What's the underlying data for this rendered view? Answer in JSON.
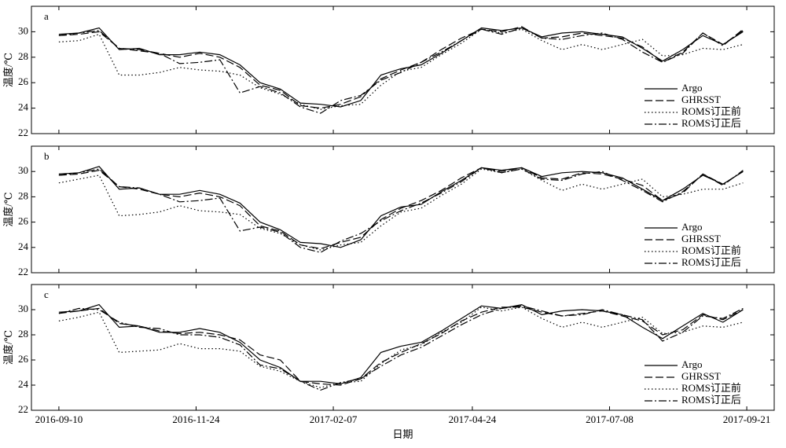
{
  "chart_data": [
    {
      "type": "line",
      "panel_label": "a",
      "ylabel": "温度/℃",
      "x": [
        "2016-09-10",
        "2016-09-21",
        "2016-10-02",
        "2016-10-13",
        "2016-10-24",
        "2016-11-04",
        "2016-11-15",
        "2016-11-26",
        "2016-12-07",
        "2016-12-18",
        "2016-12-29",
        "2017-01-09",
        "2017-01-20",
        "2017-01-31",
        "2017-02-11",
        "2017-02-22",
        "2017-03-05",
        "2017-03-16",
        "2017-03-27",
        "2017-04-07",
        "2017-04-18",
        "2017-04-29",
        "2017-05-10",
        "2017-05-21",
        "2017-06-01",
        "2017-06-12",
        "2017-06-23",
        "2017-07-04",
        "2017-07-15",
        "2017-07-26",
        "2017-08-06",
        "2017-08-17",
        "2017-08-28",
        "2017-09-08",
        "2017-09-19"
      ],
      "xlim": [
        "2016-08-26",
        "2017-10-06"
      ],
      "ylim": [
        22,
        32
      ],
      "yticks": [
        22,
        24,
        26,
        28,
        30
      ],
      "legend": "lower right",
      "series": [
        {
          "name": "Argo",
          "color": "#000",
          "dash": "solid",
          "values": [
            29.8,
            29.9,
            30.3,
            28.6,
            28.7,
            28.2,
            28.2,
            28.4,
            28.2,
            27.4,
            26.0,
            25.5,
            24.4,
            24.3,
            24.1,
            24.6,
            26.6,
            27.1,
            27.4,
            28.3,
            29.3,
            30.3,
            30.1,
            30.3,
            29.6,
            29.9,
            30.0,
            29.8,
            29.6,
            28.7,
            27.7,
            28.6,
            29.7,
            29.0,
            30.0
          ]
        },
        {
          "name": "GHRSST",
          "color": "#000",
          "dash": "dashed",
          "values": [
            29.7,
            29.8,
            30.0,
            28.7,
            28.5,
            28.3,
            28.0,
            28.3,
            28.0,
            27.2,
            25.8,
            25.4,
            24.2,
            24.0,
            24.3,
            24.9,
            26.3,
            27.0,
            27.6,
            28.6,
            29.5,
            30.2,
            30.0,
            30.4,
            29.5,
            29.6,
            29.9,
            29.7,
            29.5,
            28.8,
            27.6,
            28.4,
            29.9,
            29.0,
            30.1
          ]
        },
        {
          "name": "ROMS订正前",
          "color": "#000",
          "dash": "dotted",
          "values": [
            29.2,
            29.3,
            29.8,
            26.6,
            26.6,
            26.8,
            27.2,
            27.0,
            26.9,
            26.6,
            25.6,
            25.1,
            24.3,
            23.9,
            24.2,
            24.3,
            25.8,
            26.9,
            27.2,
            28.2,
            29.1,
            30.2,
            29.9,
            30.2,
            29.3,
            28.6,
            29.0,
            28.6,
            29.0,
            29.4,
            28.1,
            28.2,
            28.7,
            28.6,
            29.0
          ]
        },
        {
          "name": "ROMS订正后",
          "color": "#000",
          "dash": "dashdot",
          "values": [
            29.7,
            29.9,
            30.1,
            28.7,
            28.6,
            28.3,
            27.5,
            27.6,
            27.8,
            25.2,
            25.7,
            25.2,
            24.1,
            23.6,
            24.6,
            25.0,
            26.2,
            26.8,
            27.6,
            28.4,
            29.3,
            30.2,
            29.8,
            30.3,
            29.5,
            29.4,
            29.7,
            29.9,
            29.4,
            28.4,
            27.6,
            28.3,
            29.9,
            28.9,
            30.2
          ]
        }
      ]
    },
    {
      "type": "line",
      "panel_label": "b",
      "ylabel": "温度/℃",
      "x": [
        "2016-09-10",
        "2016-09-21",
        "2016-10-02",
        "2016-10-13",
        "2016-10-24",
        "2016-11-04",
        "2016-11-15",
        "2016-11-26",
        "2016-12-07",
        "2016-12-18",
        "2016-12-29",
        "2017-01-09",
        "2017-01-20",
        "2017-01-31",
        "2017-02-11",
        "2017-02-22",
        "2017-03-05",
        "2017-03-16",
        "2017-03-27",
        "2017-04-07",
        "2017-04-18",
        "2017-04-29",
        "2017-05-10",
        "2017-05-21",
        "2017-06-01",
        "2017-06-12",
        "2017-06-23",
        "2017-07-04",
        "2017-07-15",
        "2017-07-26",
        "2017-08-06",
        "2017-08-17",
        "2017-08-28",
        "2017-09-08",
        "2017-09-19"
      ],
      "xlim": [
        "2016-08-26",
        "2017-10-06"
      ],
      "ylim": [
        22,
        32
      ],
      "yticks": [
        22,
        24,
        26,
        28,
        30
      ],
      "legend": "lower right",
      "series": [
        {
          "name": "Argo",
          "color": "#000",
          "dash": "solid",
          "values": [
            29.8,
            29.9,
            30.4,
            28.6,
            28.7,
            28.2,
            28.2,
            28.5,
            28.2,
            27.5,
            26.0,
            25.4,
            24.4,
            24.3,
            24.0,
            24.6,
            26.5,
            27.2,
            27.4,
            28.4,
            29.3,
            30.3,
            30.1,
            30.3,
            29.6,
            29.9,
            30.0,
            29.9,
            29.5,
            28.6,
            27.7,
            28.6,
            29.7,
            29.0,
            30.0
          ]
        },
        {
          "name": "GHRSST",
          "color": "#000",
          "dash": "dashed",
          "values": [
            29.7,
            29.8,
            30.1,
            28.8,
            28.6,
            28.2,
            28.0,
            28.3,
            28.0,
            27.3,
            25.7,
            25.3,
            24.2,
            23.9,
            24.4,
            24.8,
            26.2,
            27.1,
            27.7,
            28.5,
            29.5,
            30.3,
            30.0,
            30.3,
            29.5,
            29.4,
            29.9,
            29.8,
            29.4,
            28.9,
            27.7,
            28.3,
            29.8,
            29.0,
            30.0
          ]
        },
        {
          "name": "ROMS订正前",
          "color": "#000",
          "dash": "dotted",
          "values": [
            29.1,
            29.4,
            29.7,
            26.5,
            26.6,
            26.8,
            27.3,
            26.9,
            26.8,
            26.6,
            25.5,
            25.1,
            24.2,
            23.8,
            24.2,
            24.4,
            25.7,
            26.8,
            27.1,
            28.1,
            29.0,
            30.2,
            29.9,
            30.2,
            29.3,
            28.5,
            29.0,
            28.6,
            29.0,
            29.4,
            28.0,
            28.2,
            28.6,
            28.6,
            29.1
          ]
        },
        {
          "name": "ROMS订正后",
          "color": "#000",
          "dash": "dashdot",
          "values": [
            29.7,
            29.9,
            30.2,
            28.8,
            28.7,
            28.2,
            27.6,
            27.7,
            27.9,
            25.3,
            25.6,
            25.2,
            24.0,
            23.6,
            24.5,
            25.1,
            26.1,
            26.9,
            27.5,
            28.3,
            29.2,
            30.3,
            29.9,
            30.2,
            29.4,
            29.3,
            29.8,
            30.0,
            29.3,
            28.5,
            27.6,
            28.4,
            29.8,
            28.9,
            30.1
          ]
        }
      ]
    },
    {
      "type": "line",
      "panel_label": "c",
      "ylabel": "温度/℃",
      "xlabel": "日期",
      "x": [
        "2016-09-10",
        "2016-09-21",
        "2016-10-02",
        "2016-10-13",
        "2016-10-24",
        "2016-11-04",
        "2016-11-15",
        "2016-11-26",
        "2016-12-07",
        "2016-12-18",
        "2016-12-29",
        "2017-01-09",
        "2017-01-20",
        "2017-01-31",
        "2017-02-11",
        "2017-02-22",
        "2017-03-05",
        "2017-03-16",
        "2017-03-27",
        "2017-04-07",
        "2017-04-18",
        "2017-04-29",
        "2017-05-10",
        "2017-05-21",
        "2017-06-01",
        "2017-06-12",
        "2017-06-23",
        "2017-07-04",
        "2017-07-15",
        "2017-07-26",
        "2017-08-06",
        "2017-08-17",
        "2017-08-28",
        "2017-09-08",
        "2017-09-19"
      ],
      "xlim": [
        "2016-08-26",
        "2017-10-06"
      ],
      "xticks": [
        "2016-09-10",
        "2016-11-24",
        "2017-02-07",
        "2017-04-24",
        "2017-07-08",
        "2017-09-21"
      ],
      "ylim": [
        22,
        32
      ],
      "yticks": [
        22,
        24,
        26,
        28,
        30
      ],
      "legend": "lower right",
      "series": [
        {
          "name": "Argo",
          "color": "#000",
          "dash": "solid",
          "values": [
            29.8,
            29.9,
            30.4,
            28.6,
            28.7,
            28.2,
            28.2,
            28.5,
            28.2,
            27.4,
            26.0,
            25.4,
            24.3,
            24.3,
            24.1,
            24.6,
            26.6,
            27.1,
            27.4,
            28.3,
            29.3,
            30.3,
            30.1,
            30.4,
            29.6,
            29.9,
            30.0,
            29.9,
            29.6,
            28.6,
            27.7,
            28.7,
            29.7,
            29.0,
            30.0
          ]
        },
        {
          "name": "GHRSST",
          "color": "#000",
          "dash": "dashed",
          "values": [
            29.7,
            29.9,
            30.1,
            28.9,
            28.7,
            28.3,
            28.1,
            28.2,
            28.0,
            27.6,
            26.4,
            26.0,
            24.3,
            24.1,
            24.0,
            24.5,
            25.8,
            26.6,
            27.3,
            28.1,
            29.1,
            29.8,
            30.2,
            30.2,
            29.8,
            29.5,
            29.7,
            29.9,
            29.5,
            29.1,
            28.0,
            28.4,
            29.6,
            29.2,
            30.0
          ]
        },
        {
          "name": "ROMS订正前",
          "color": "#000",
          "dash": "dotted",
          "values": [
            29.1,
            29.4,
            29.8,
            26.6,
            26.7,
            26.8,
            27.3,
            26.9,
            26.9,
            26.7,
            25.5,
            25.1,
            24.3,
            23.8,
            24.2,
            24.3,
            25.7,
            26.8,
            27.2,
            28.2,
            29.0,
            30.2,
            29.9,
            30.2,
            29.3,
            28.6,
            29.0,
            28.6,
            29.0,
            29.4,
            28.1,
            28.2,
            28.7,
            28.6,
            29.0
          ]
        },
        {
          "name": "ROMS订正后",
          "color": "#000",
          "dash": "dashdot",
          "values": [
            29.7,
            30.1,
            30.0,
            29.0,
            28.6,
            28.5,
            28.0,
            28.0,
            27.8,
            27.2,
            25.6,
            25.3,
            24.3,
            23.6,
            24.2,
            24.5,
            25.5,
            26.4,
            27.0,
            27.9,
            28.8,
            29.6,
            30.1,
            30.3,
            29.9,
            29.5,
            29.6,
            30.0,
            29.6,
            29.2,
            27.5,
            28.2,
            29.5,
            29.3,
            30.1
          ]
        }
      ]
    }
  ]
}
